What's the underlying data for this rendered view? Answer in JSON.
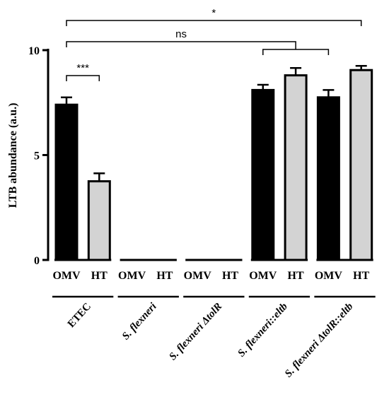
{
  "chart_data": {
    "type": "bar",
    "ylabel": "LTB abundance (a.u.)",
    "ylim": [
      0,
      10
    ],
    "yticks": [
      0,
      5,
      10
    ],
    "categories": [
      "OMV",
      "HT",
      "OMV",
      "HT",
      "OMV",
      "HT",
      "OMV",
      "HT",
      "OMV",
      "HT"
    ],
    "groups": [
      {
        "label": "ETEC",
        "italic": false
      },
      {
        "label": "S. flexneri",
        "italic": true
      },
      {
        "label": "S. flexneri ΔtolR",
        "italic": true
      },
      {
        "label": "S. flexneri::eltb",
        "italic": true
      },
      {
        "label": "S. flexneri ΔtolR::eltb",
        "italic": true
      }
    ],
    "bars": [
      {
        "group": 0,
        "kind": "OMV",
        "value": 7.4,
        "error": 0.35
      },
      {
        "group": 0,
        "kind": "HT",
        "value": 3.75,
        "error": 0.38
      },
      {
        "group": 1,
        "kind": "OMV",
        "value": 0,
        "error": 0
      },
      {
        "group": 1,
        "kind": "HT",
        "value": 0,
        "error": 0
      },
      {
        "group": 2,
        "kind": "OMV",
        "value": 0,
        "error": 0
      },
      {
        "group": 2,
        "kind": "HT",
        "value": 0,
        "error": 0
      },
      {
        "group": 3,
        "kind": "OMV",
        "value": 8.1,
        "error": 0.25
      },
      {
        "group": 3,
        "kind": "HT",
        "value": 8.8,
        "error": 0.35
      },
      {
        "group": 4,
        "kind": "OMV",
        "value": 7.75,
        "error": 0.35
      },
      {
        "group": 4,
        "kind": "HT",
        "value": 9.05,
        "error": 0.2
      }
    ],
    "colors": {
      "OMV": "#000000",
      "HT": "#d3d3d3"
    },
    "significance": [
      {
        "label": "***",
        "from_bar": 0,
        "to_bar": 1,
        "level": 0
      },
      {
        "label": "ns",
        "from_bar": 0,
        "to_bars": [
          6,
          8
        ],
        "level": 1
      },
      {
        "label": "*",
        "from_bar": 0,
        "to_bar": 9,
        "level": 2
      }
    ]
  }
}
